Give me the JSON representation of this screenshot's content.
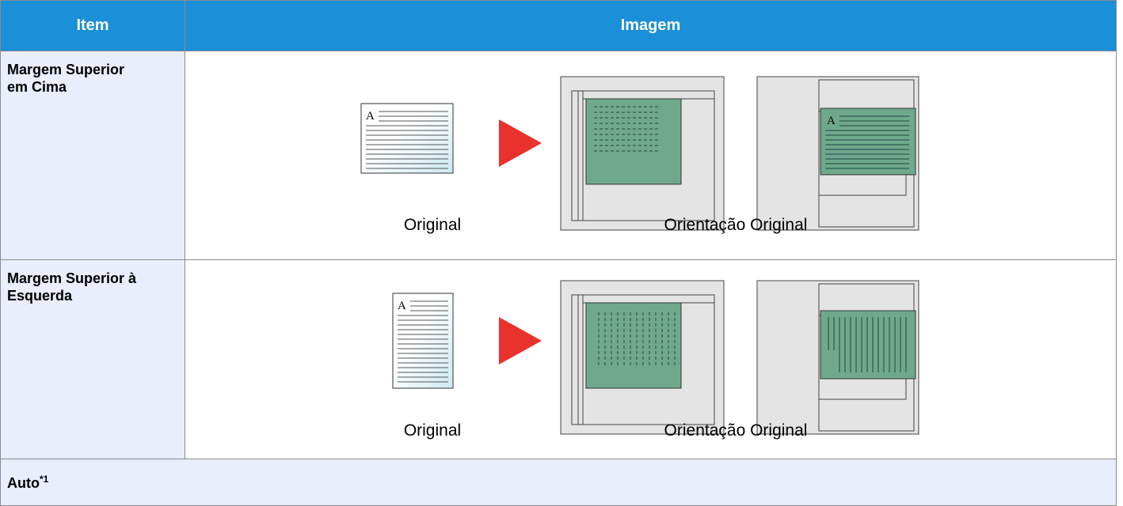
{
  "table": {
    "header": [
      "Item",
      "Imagem"
    ],
    "rows": [
      {
        "item": "Margem Superior em Cima",
        "captions": [
          "Original",
          "Orientação Original"
        ]
      },
      {
        "item": "Margem Superior à Esquerda",
        "captions": [
          "Original",
          "Orientação Original"
        ]
      }
    ],
    "footer": {
      "label": "Auto",
      "note": "*1"
    }
  }
}
